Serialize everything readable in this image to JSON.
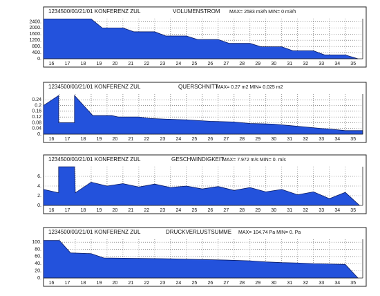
{
  "chart_data": [
    {
      "type": "area",
      "header": "1234500/00/21/01 KONFERENZ ZUL",
      "title": "VOLUMENSTROM",
      "subtitle": "MAX= 2583 m3/h  MIN= 0 m3/h",
      "color": "#2352dc",
      "x": [
        15.5,
        18.5,
        19.2,
        20.5,
        21.2,
        22.5,
        23.2,
        24.5,
        25.2,
        26.5,
        27.2,
        28.5,
        29.2,
        30.5,
        31.2,
        32.5,
        33.2,
        34.5,
        35.3
      ],
      "values": [
        2583,
        2583,
        2000,
        2000,
        1750,
        1750,
        1480,
        1480,
        1250,
        1250,
        1000,
        1000,
        780,
        780,
        520,
        520,
        250,
        250,
        0
      ],
      "xlim": [
        15.5,
        35.6
      ],
      "xticks": [
        16,
        17,
        18,
        19,
        20,
        21,
        22,
        23,
        24,
        25,
        26,
        27,
        28,
        29,
        30,
        31,
        32,
        33,
        34,
        35
      ],
      "ylim": [
        0,
        2600
      ],
      "yticks": [
        {
          "value": 0,
          "label": "0."
        },
        {
          "value": 400,
          "label": "400."
        },
        {
          "value": 800,
          "label": "800."
        },
        {
          "value": 1200,
          "label": "1200."
        },
        {
          "value": 1600,
          "label": "1600."
        },
        {
          "value": 2000,
          "label": "2000."
        },
        {
          "value": 2400,
          "label": "2400."
        }
      ],
      "grid": true
    },
    {
      "type": "area",
      "header": "1234500/00/21/01 KONFERENZ ZUL",
      "title": "QUERSCHNITT",
      "subtitle": "MAX= 0.27 m2  MIN= 0.025 m2",
      "color": "#2352dc",
      "x": [
        15.5,
        16.45,
        16.45,
        17.45,
        17.45,
        18.6,
        19.8,
        20.2,
        21.5,
        22.2,
        23.2,
        24.5,
        26,
        27.5,
        28.5,
        30,
        31,
        32,
        33,
        33.6,
        34.5,
        35.6
      ],
      "values": [
        0.2,
        0.27,
        0.08,
        0.08,
        0.27,
        0.13,
        0.13,
        0.12,
        0.12,
        0.11,
        0.105,
        0.1,
        0.09,
        0.085,
        0.075,
        0.07,
        0.06,
        0.05,
        0.04,
        0.035,
        0.025,
        0.025
      ],
      "xlim": [
        15.5,
        35.6
      ],
      "xticks": [
        16,
        17,
        18,
        19,
        20,
        21,
        22,
        23,
        24,
        25,
        26,
        27,
        28,
        29,
        30,
        31,
        32,
        33,
        34,
        35
      ],
      "ylim": [
        0,
        0.28
      ],
      "yticks": [
        {
          "value": 0,
          "label": "0."
        },
        0.04,
        0.08,
        0.12,
        0.16,
        0.2,
        0.24
      ],
      "grid": true
    },
    {
      "type": "area",
      "header": "1234500/00/21/01 KONFERENZ ZUL",
      "title": "GESCHWINDIGKEIT",
      "subtitle": "MAX= 7.972 m/s  MIN= 0. m/s",
      "color": "#2352dc",
      "x": [
        15.5,
        16.45,
        16.45,
        17.45,
        17.5,
        18.5,
        19.5,
        20.5,
        21.5,
        22.5,
        23.5,
        24.5,
        25.5,
        26.5,
        27.5,
        28.5,
        29.5,
        30.5,
        31.5,
        32.5,
        33.5,
        34.5,
        35.4
      ],
      "values": [
        3.3,
        2.6,
        7.972,
        7.972,
        2.6,
        4.8,
        4.0,
        4.5,
        3.8,
        4.4,
        3.7,
        4.0,
        3.4,
        3.9,
        3.1,
        3.7,
        2.8,
        3.3,
        2.2,
        2.8,
        1.4,
        2.7,
        0
      ],
      "xlim": [
        15.5,
        35.6
      ],
      "xticks": [
        16,
        17,
        18,
        19,
        20,
        21,
        22,
        23,
        24,
        25,
        26,
        27,
        28,
        29,
        30,
        31,
        32,
        33,
        34,
        35
      ],
      "ylim": [
        0,
        8
      ],
      "yticks": [
        {
          "value": 0,
          "label": "0."
        },
        {
          "value": 2,
          "label": "2."
        },
        {
          "value": 4,
          "label": "4."
        },
        {
          "value": 6,
          "label": "6."
        }
      ],
      "grid": true
    },
    {
      "type": "area",
      "header": "1234500/00/21/01 KONFERENZ ZUL",
      "title": "DRUCKVERLUSTSUMME",
      "subtitle": "MAX= 104.74 Pa  MIN= 0. Pa",
      "color": "#2352dc",
      "x": [
        15.5,
        16.5,
        17.2,
        18.5,
        19.3,
        21,
        23,
        25,
        27,
        28.5,
        29.5,
        30.5,
        31.5,
        32.5,
        33.5,
        34.5,
        35.3
      ],
      "values": [
        104.74,
        104.74,
        70,
        68,
        56,
        55,
        54,
        52,
        50,
        48,
        45,
        43,
        42,
        40,
        39,
        38,
        0
      ],
      "xlim": [
        15.5,
        35.6
      ],
      "xticks": [
        16,
        17,
        18,
        19,
        20,
        21,
        22,
        23,
        24,
        25,
        26,
        27,
        28,
        29,
        30,
        31,
        32,
        33,
        34,
        35
      ],
      "ylim": [
        0,
        108
      ],
      "yticks": [
        {
          "value": 0,
          "label": "0."
        },
        {
          "value": 20,
          "label": "20."
        },
        {
          "value": 40,
          "label": "40."
        },
        {
          "value": 60,
          "label": "60."
        },
        {
          "value": 80,
          "label": "80."
        },
        {
          "value": 100,
          "label": "100."
        }
      ],
      "grid": true
    }
  ]
}
